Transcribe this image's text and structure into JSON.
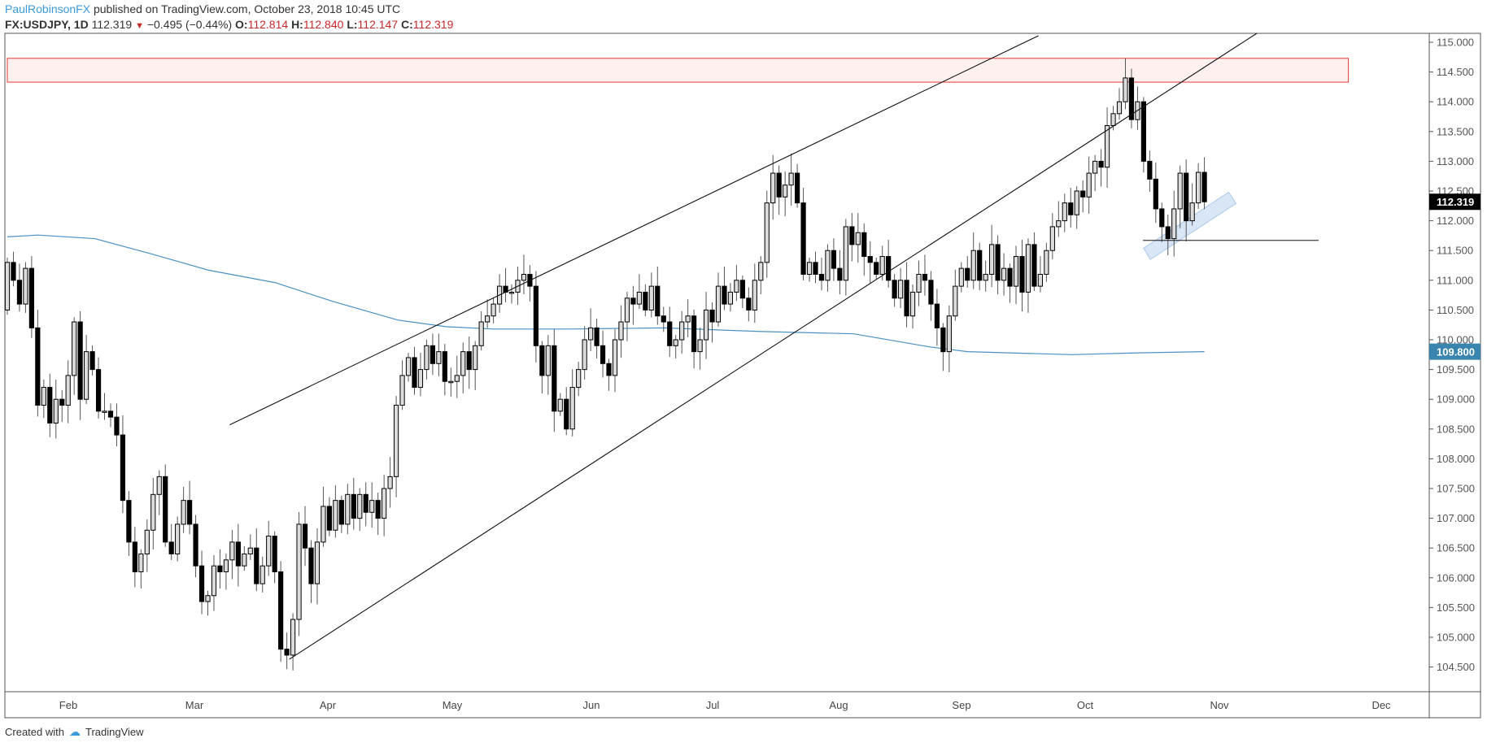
{
  "header": {
    "author": "PaulRobinsonFX",
    "published": "published on TradingView.com, October 23, 2018 10:45 UTC",
    "symbol": "FX:USDJPY, 1D",
    "last": "112.319",
    "change": "−0.495 (−0.44%)",
    "o_label": "O:",
    "o": "112.814",
    "h_label": "H:",
    "h": "112.840",
    "l_label": "L:",
    "l": "112.147",
    "c_label": "C:",
    "c": "112.319"
  },
  "footer": {
    "created_with": "Created with",
    "brand": "TradingView"
  },
  "colors": {
    "up_fill": "#dcdcdc",
    "down_fill": "#000000",
    "ma": "#4a90c2",
    "zone": "#e53935",
    "zone_fill": "#fff0f0",
    "highlight": "#a9c8ea",
    "last_tag": "#000000",
    "ma_tag": "#3a84b0"
  },
  "chart_data": {
    "type": "candlestick",
    "title": "FX:USDJPY, 1D",
    "ylim": [
      104.0,
      115.6
    ],
    "y_ticks": [
      "115.000",
      "114.500",
      "114.000",
      "113.500",
      "113.000",
      "112.500",
      "112.000",
      "111.500",
      "111.000",
      "110.500",
      "110.000",
      "109.500",
      "109.000",
      "108.500",
      "108.000",
      "107.500",
      "107.000",
      "106.500",
      "106.000",
      "105.500",
      "105.000",
      "104.500"
    ],
    "x_ticks": [
      "Feb",
      "Mar",
      "Apr",
      "May",
      "Jun",
      "Jul",
      "Aug",
      "Sep",
      "Oct",
      "Nov",
      "Dec"
    ],
    "first_open": 110.5,
    "closes": [
      111.3,
      111.0,
      110.6,
      111.2,
      110.2,
      108.9,
      109.2,
      108.6,
      109.0,
      108.9,
      109.4,
      110.3,
      109.0,
      109.8,
      109.5,
      108.8,
      108.8,
      108.7,
      108.4,
      107.3,
      106.6,
      106.1,
      106.4,
      106.8,
      107.4,
      107.7,
      106.6,
      106.4,
      106.9,
      107.3,
      106.9,
      106.2,
      105.6,
      105.7,
      106.2,
      106.1,
      106.3,
      106.6,
      106.2,
      106.4,
      106.5,
      105.9,
      106.2,
      106.7,
      106.1,
      104.8,
      104.7,
      105.3,
      106.9,
      106.5,
      105.9,
      106.6,
      107.2,
      106.8,
      107.3,
      106.9,
      107.4,
      107.0,
      107.4,
      107.1,
      107.3,
      107.0,
      107.5,
      107.7,
      108.9,
      109.4,
      109.7,
      109.2,
      109.5,
      109.9,
      109.6,
      109.8,
      109.3,
      109.3,
      109.4,
      109.8,
      109.5,
      109.9,
      110.3,
      110.4,
      110.6,
      110.9,
      110.8,
      110.8,
      111.0,
      111.1,
      110.9,
      109.9,
      109.4,
      109.9,
      108.8,
      109.0,
      108.5,
      109.2,
      109.5,
      110.0,
      110.2,
      109.9,
      109.6,
      109.4,
      110.0,
      110.3,
      110.7,
      110.6,
      110.8,
      110.5,
      110.9,
      110.4,
      110.3,
      109.9,
      110.0,
      110.3,
      110.4,
      109.8,
      110.0,
      110.5,
      110.3,
      110.9,
      110.6,
      110.8,
      111.0,
      110.7,
      110.5,
      111.0,
      111.3,
      112.3,
      112.8,
      112.4,
      112.6,
      112.8,
      112.3,
      111.1,
      111.3,
      111.1,
      111.0,
      111.5,
      111.2,
      111.0,
      111.9,
      111.6,
      111.8,
      111.4,
      111.3,
      111.1,
      111.4,
      111.0,
      110.7,
      111.0,
      110.4,
      110.8,
      111.1,
      111.0,
      110.6,
      110.2,
      109.8,
      110.4,
      110.9,
      111.2,
      111.0,
      111.5,
      111.0,
      111.1,
      111.6,
      111.0,
      111.2,
      110.9,
      111.4,
      110.8,
      111.6,
      110.9,
      111.1,
      111.5,
      111.9,
      112.0,
      112.3,
      112.1,
      112.5,
      112.4,
      112.8,
      113.0,
      112.9,
      113.6,
      113.8,
      114.0,
      114.4,
      113.7,
      114.0,
      113.0,
      112.7,
      112.2,
      111.9,
      111.7,
      112.2,
      112.8,
      112.0,
      112.3,
      112.814,
      112.319
    ],
    "moving_average": {
      "label": "109.800",
      "points": [
        [
          0,
          111.73
        ],
        [
          5,
          111.76
        ],
        [
          14.4,
          111.7
        ],
        [
          23.8,
          111.44
        ],
        [
          33.1,
          111.17
        ],
        [
          44.1,
          110.96
        ],
        [
          53.4,
          110.65
        ],
        [
          64.3,
          110.33
        ],
        [
          72.2,
          110.22
        ],
        [
          80,
          110.18
        ],
        [
          92.4,
          110.18
        ],
        [
          108.1,
          110.2
        ],
        [
          123.7,
          110.14
        ],
        [
          139.3,
          110.1
        ],
        [
          151.8,
          109.88
        ],
        [
          158,
          109.8
        ],
        [
          175.2,
          109.75
        ],
        [
          186.1,
          109.78
        ],
        [
          197,
          109.8
        ]
      ]
    },
    "last_price_label": "112.319",
    "trendlines": [
      {
        "name": "upper-channel-line",
        "from": [
          36.6,
          108.57
        ],
        "to": [
          169.7,
          115.11
        ]
      },
      {
        "name": "lower-channel-line",
        "from": [
          46.4,
          104.63
        ],
        "to": [
          220,
          116.1
        ]
      },
      {
        "name": "support-horizontal-line",
        "from": [
          186.9,
          111.67
        ],
        "to": [
          215.8,
          111.67
        ]
      }
    ],
    "resistance_zone": {
      "from_bar": 0,
      "to_bar": 220.7,
      "top": 114.73,
      "bottom": 114.33
    },
    "highlight": [
      [
        187,
        111.54
      ],
      [
        201,
        112.48
      ],
      [
        202.2,
        112.29
      ],
      [
        188.1,
        111.35
      ]
    ]
  }
}
